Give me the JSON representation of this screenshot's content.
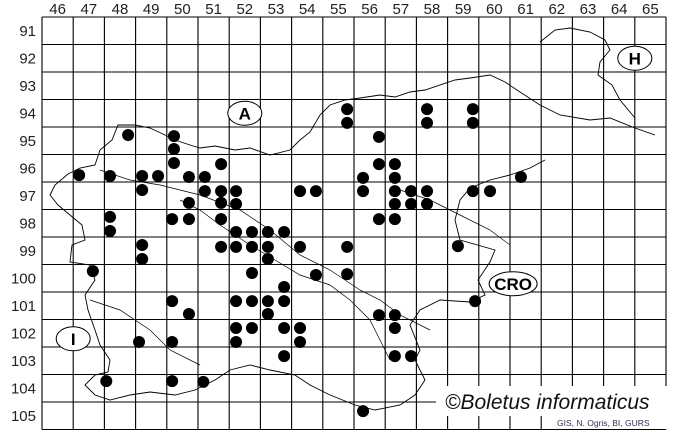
{
  "map": {
    "columns": [
      "46",
      "47",
      "48",
      "49",
      "50",
      "51",
      "52",
      "53",
      "54",
      "55",
      "56",
      "57",
      "58",
      "59",
      "60",
      "61",
      "62",
      "63",
      "64",
      "65"
    ],
    "rows": [
      "91",
      "92",
      "93",
      "94",
      "95",
      "96",
      "97",
      "98",
      "99",
      "100",
      "101",
      "102",
      "103",
      "104",
      "105"
    ],
    "country_labels": [
      {
        "text": "A",
        "col": 52.5,
        "row": 94.5
      },
      {
        "text": "H",
        "col": 65.0,
        "row": 92.5
      },
      {
        "text": "CRO",
        "col": 61.1,
        "row": 100.7
      },
      {
        "text": "I",
        "col": 47.0,
        "row": 102.7
      }
    ],
    "dot_color": "#000000",
    "occurrences": [
      [
        48.76,
        95.29
      ],
      [
        50.23,
        95.33
      ],
      [
        50.23,
        95.8
      ],
      [
        50.23,
        96.31
      ],
      [
        51.74,
        96.35
      ],
      [
        47.19,
        96.75
      ],
      [
        48.18,
        96.78
      ],
      [
        49.21,
        96.78
      ],
      [
        49.72,
        96.78
      ],
      [
        50.71,
        96.82
      ],
      [
        51.22,
        96.82
      ],
      [
        49.21,
        97.29
      ],
      [
        51.22,
        97.33
      ],
      [
        51.74,
        97.33
      ],
      [
        52.22,
        97.33
      ],
      [
        54.27,
        97.33
      ],
      [
        54.78,
        97.33
      ],
      [
        50.71,
        97.76
      ],
      [
        51.74,
        97.76
      ],
      [
        52.22,
        97.8
      ],
      [
        48.18,
        98.27
      ],
      [
        50.17,
        98.35
      ],
      [
        50.71,
        98.35
      ],
      [
        51.74,
        98.35
      ],
      [
        48.18,
        98.78
      ],
      [
        52.22,
        98.82
      ],
      [
        52.73,
        98.82
      ],
      [
        53.24,
        98.82
      ],
      [
        53.76,
        98.82
      ],
      [
        49.21,
        99.29
      ],
      [
        51.74,
        99.36
      ],
      [
        52.22,
        99.36
      ],
      [
        52.73,
        99.36
      ],
      [
        53.24,
        99.36
      ],
      [
        54.27,
        99.36
      ],
      [
        49.21,
        99.8
      ],
      [
        53.24,
        99.8
      ],
      [
        47.63,
        100.24
      ],
      [
        52.73,
        100.31
      ],
      [
        54.78,
        100.38
      ],
      [
        53.76,
        100.82
      ],
      [
        50.17,
        101.33
      ],
      [
        52.22,
        101.33
      ],
      [
        52.73,
        101.33
      ],
      [
        53.24,
        101.33
      ],
      [
        53.76,
        101.33
      ],
      [
        50.71,
        101.8
      ],
      [
        53.24,
        101.8
      ],
      [
        52.22,
        102.31
      ],
      [
        52.73,
        102.31
      ],
      [
        53.76,
        102.31
      ],
      [
        54.27,
        102.31
      ],
      [
        49.11,
        102.82
      ],
      [
        50.17,
        102.82
      ],
      [
        52.22,
        102.82
      ],
      [
        54.27,
        102.82
      ],
      [
        53.76,
        103.33
      ],
      [
        48.06,
        104.24
      ],
      [
        50.17,
        104.24
      ],
      [
        51.17,
        104.27
      ],
      [
        55.78,
        94.35
      ],
      [
        55.78,
        94.85
      ],
      [
        58.34,
        94.35
      ],
      [
        58.34,
        94.85
      ],
      [
        59.81,
        94.35
      ],
      [
        59.81,
        94.85
      ],
      [
        56.8,
        95.36
      ],
      [
        56.8,
        96.35
      ],
      [
        57.31,
        96.35
      ],
      [
        56.29,
        96.85
      ],
      [
        57.31,
        96.85
      ],
      [
        61.35,
        96.82
      ],
      [
        56.29,
        97.33
      ],
      [
        57.31,
        97.33
      ],
      [
        57.83,
        97.33
      ],
      [
        58.34,
        97.33
      ],
      [
        59.81,
        97.33
      ],
      [
        60.36,
        97.33
      ],
      [
        57.31,
        97.8
      ],
      [
        57.83,
        97.8
      ],
      [
        58.34,
        97.8
      ],
      [
        56.8,
        98.35
      ],
      [
        57.31,
        98.35
      ],
      [
        55.78,
        99.36
      ],
      [
        59.33,
        99.33
      ],
      [
        55.78,
        100.35
      ],
      [
        59.88,
        101.33
      ],
      [
        56.8,
        101.84
      ],
      [
        57.31,
        101.84
      ],
      [
        57.31,
        102.31
      ],
      [
        57.31,
        103.33
      ],
      [
        57.83,
        103.33
      ],
      [
        56.29,
        105.33
      ]
    ]
  },
  "footer": {
    "copyright": "©Boletus informaticus",
    "credit": "GIS, N. Ogris, BI, GURS"
  }
}
